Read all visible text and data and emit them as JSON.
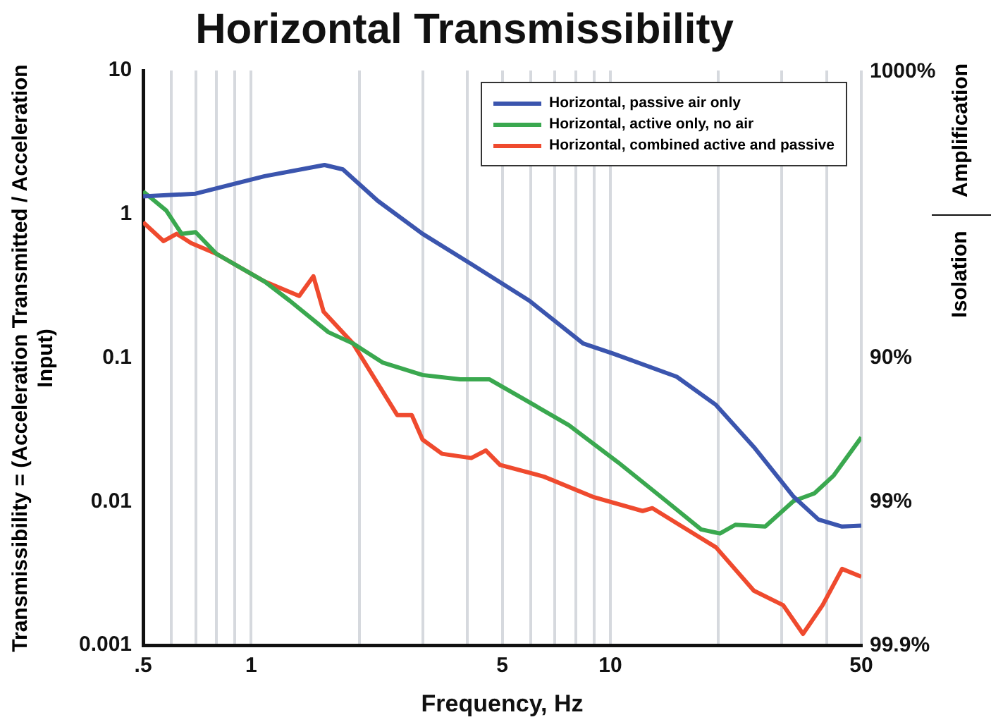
{
  "chart_data": {
    "type": "line",
    "title": "Horizontal Transmissibility",
    "xlabel": "Frequency, Hz",
    "ylabel": "Transmissibility = (Acceleration Transmitted / Acceleration Input)",
    "log": "xy",
    "grid": "x",
    "legend": "top right",
    "marker": "none",
    "line_style": "solid",
    "xlim": [
      0.5,
      50
    ],
    "xticks": [
      {
        "value": 0.5,
        "label": ".5"
      },
      {
        "value": 0.6,
        "label": null
      },
      {
        "value": 0.7,
        "label": null
      },
      {
        "value": 0.8,
        "label": null
      },
      {
        "value": 0.9,
        "label": null
      },
      1,
      {
        "value": 2,
        "label": null
      },
      {
        "value": 3,
        "label": null
      },
      {
        "value": 4,
        "label": null
      },
      5,
      {
        "value": 6,
        "label": null
      },
      {
        "value": 7,
        "label": null
      },
      {
        "value": 8,
        "label": null
      },
      {
        "value": 9,
        "label": null
      },
      10,
      {
        "value": 20,
        "label": null
      },
      {
        "value": 30,
        "label": null
      },
      {
        "value": 40,
        "label": null
      },
      50
    ],
    "ylim": [
      0.001,
      10
    ],
    "yticks": [
      0.001,
      0.01,
      0.1,
      1,
      10
    ],
    "annotations": [
      "Amplification",
      "Isolation",
      "1000%",
      "90%",
      "99%",
      "99.9%"
    ],
    "series": [
      {
        "name": "Horizontal, passive air only",
        "color": "#3b55ae",
        "x": [
          0.5,
          0.7,
          1.09,
          1.6,
          1.8,
          2.25,
          3.0,
          4.1,
          5.95,
          8.4,
          10.2,
          15.3,
          19.7,
          25.1,
          32.4,
          38,
          44.2,
          50
        ],
        "values": [
          1.33,
          1.39,
          1.84,
          2.2,
          2.05,
          1.24,
          0.73,
          0.45,
          0.25,
          0.126,
          0.107,
          0.074,
          0.047,
          0.024,
          0.0108,
          0.0075,
          0.0067,
          0.0068
        ]
      },
      {
        "name": "Horizontal, active only, no air",
        "color": "#3aa84f",
        "x": [
          0.5,
          0.58,
          0.64,
          0.7,
          0.8,
          1.09,
          1.28,
          1.64,
          1.92,
          2.32,
          3.0,
          3.82,
          4.6,
          5.57,
          7.67,
          10.5,
          14.3,
          17.9,
          20.2,
          22.3,
          27,
          32.4,
          37,
          41.9,
          50
        ],
        "values": [
          1.44,
          1.06,
          0.73,
          0.75,
          0.53,
          0.34,
          0.25,
          0.151,
          0.126,
          0.093,
          0.076,
          0.071,
          0.071,
          0.054,
          0.034,
          0.0188,
          0.0101,
          0.0064,
          0.006,
          0.0069,
          0.0067,
          0.0101,
          0.0114,
          0.0152,
          0.028
        ]
      },
      {
        "name": "Horizontal, combined active and passive",
        "color": "#ef4a2e",
        "x": [
          0.5,
          0.57,
          0.62,
          0.68,
          0.8,
          1.09,
          1.36,
          1.49,
          1.59,
          1.92,
          2.55,
          2.8,
          3.0,
          3.4,
          4.1,
          4.5,
          4.93,
          6.54,
          8.93,
          12.3,
          13.1,
          15.7,
          19.7,
          25.1,
          30.3,
          34.4,
          39,
          44.2,
          50
        ],
        "values": [
          0.88,
          0.65,
          0.73,
          0.63,
          0.53,
          0.34,
          0.27,
          0.37,
          0.21,
          0.126,
          0.04,
          0.04,
          0.027,
          0.0215,
          0.0201,
          0.0227,
          0.018,
          0.0149,
          0.0108,
          0.0086,
          0.009,
          0.0068,
          0.0048,
          0.0024,
          0.0019,
          0.0012,
          0.0019,
          0.0034,
          0.003
        ]
      }
    ]
  }
}
